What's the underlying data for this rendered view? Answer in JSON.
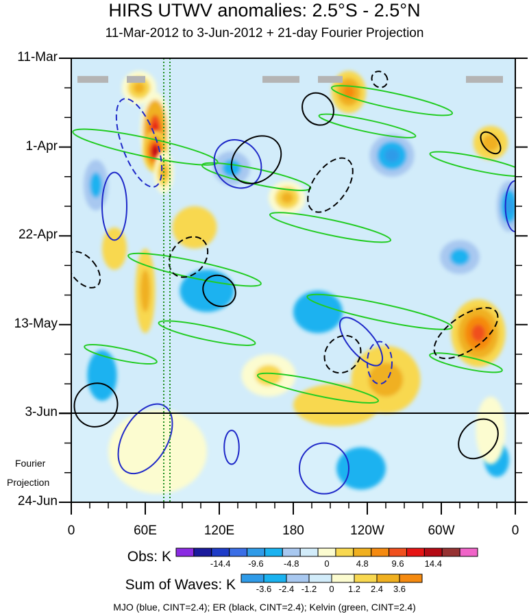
{
  "chart_data": {
    "type": "heatmap",
    "title": "HIRS UTWV anomalies: 2.5°S - 2.5°N",
    "subtitle": "11-Mar-2012 to 3-Jun-2012 + 21-day Fourier Projection",
    "x_ticks": [
      "0",
      "60E",
      "120E",
      "180",
      "120W",
      "60W",
      "0"
    ],
    "x_values": [
      0,
      60,
      120,
      180,
      240,
      300,
      360
    ],
    "xlim": [
      0,
      360
    ],
    "y_ticks": [
      "11-Mar",
      "1-Apr",
      "22-Apr",
      "13-May",
      "3-Jun",
      "24-Jun"
    ],
    "y_values": [
      0,
      21,
      42,
      63,
      84,
      105
    ],
    "ylim": [
      0,
      105
    ],
    "observed_end_tick": "3-Jun",
    "projection_label": [
      "Fourier",
      "Projection"
    ],
    "obs_colorbar": {
      "name": "Obs: K",
      "tick_labels": [
        "-14.4",
        "-9.6",
        "-4.8",
        "0",
        "4.8",
        "9.6",
        "14.4"
      ],
      "colors": [
        "#8a2be2",
        "#1a1a9c",
        "#1e3cc8",
        "#3a6ee6",
        "#2f9be8",
        "#1ab2f0",
        "#a8c8f0",
        "#d2ecfa",
        "#fcfcd0",
        "#f8d850",
        "#f0b020",
        "#f58a10",
        "#f0501e",
        "#e61414",
        "#b40a14",
        "#963232",
        "#f064c8"
      ]
    },
    "waves_colorbar": {
      "name": "Sum of Waves: K",
      "tick_labels": [
        "-3.6",
        "-2.4",
        "-1.2",
        "0",
        "1.2",
        "2.4",
        "3.6"
      ],
      "colors": [
        "#2f9be8",
        "#1ab2f0",
        "#a8c8f0",
        "#d2ecfa",
        "#fcfcd0",
        "#f8d850",
        "#f0b020",
        "#f58a10"
      ]
    },
    "contour_legend": "MJO (blue, CINT=2.4); ER (black, CINT=2.4); Kelvin (green, CINT=2.4)",
    "contour_colors": {
      "mjo": "#1e28c8",
      "er": "#000000",
      "kelvin": "#22cc22"
    },
    "missing_data_bars": [
      {
        "x0": 5,
        "x1": 30,
        "day": 5
      },
      {
        "x0": 45,
        "x1": 60,
        "day": 5
      },
      {
        "x0": 155,
        "x1": 185,
        "day": 5
      },
      {
        "x0": 200,
        "x1": 220,
        "day": 5
      },
      {
        "x0": 320,
        "x1": 350,
        "day": 5
      }
    ],
    "reference_longitudes": [
      75,
      80
    ],
    "features": {
      "warm": [
        {
          "x": 55,
          "day": 7,
          "rx": 14,
          "ry": 4,
          "v": 6
        },
        {
          "x": 68,
          "day": 17,
          "rx": 12,
          "ry": 9,
          "v": 12
        },
        {
          "x": 68,
          "day": 22,
          "rx": 10,
          "ry": 5,
          "v": 15
        },
        {
          "x": 75,
          "day": 27,
          "rx": 8,
          "ry": 5,
          "v": 6
        },
        {
          "x": 60,
          "day": 55,
          "rx": 8,
          "ry": 10,
          "v": 5
        },
        {
          "x": 35,
          "day": 45,
          "rx": 10,
          "ry": 5,
          "v": 3
        },
        {
          "x": 175,
          "day": 33,
          "rx": 15,
          "ry": 4,
          "v": 7
        },
        {
          "x": 225,
          "day": 8,
          "rx": 14,
          "ry": 5,
          "v": 8
        },
        {
          "x": 330,
          "day": 65,
          "rx": 22,
          "ry": 8,
          "v": 10
        },
        {
          "x": 340,
          "day": 20,
          "rx": 14,
          "ry": 4,
          "v": 5
        },
        {
          "x": 255,
          "day": 76,
          "rx": 28,
          "ry": 8,
          "v": 5
        },
        {
          "x": 160,
          "day": 75,
          "rx": 22,
          "ry": 5,
          "v": 4
        },
        {
          "x": 215,
          "day": 82,
          "rx": 35,
          "ry": 5,
          "v": 3
        },
        {
          "x": 70,
          "day": 93,
          "rx": 40,
          "ry": 10,
          "v": 1.2
        },
        {
          "x": 340,
          "day": 88,
          "rx": 12,
          "ry": 8,
          "v": 1.2
        },
        {
          "x": 100,
          "day": 40,
          "rx": 18,
          "ry": 5,
          "v": 3
        }
      ],
      "cold": [
        {
          "x": 20,
          "day": 30,
          "rx": 10,
          "ry": 6,
          "v": -4
        },
        {
          "x": 260,
          "day": 23,
          "rx": 18,
          "ry": 5,
          "v": -6
        },
        {
          "x": 315,
          "day": 47,
          "rx": 16,
          "ry": 4,
          "v": -4
        },
        {
          "x": 355,
          "day": 35,
          "rx": 10,
          "ry": 6,
          "v": -6
        },
        {
          "x": 130,
          "day": 26,
          "rx": 15,
          "ry": 4,
          "v": -4
        },
        {
          "x": 200,
          "day": 60,
          "rx": 20,
          "ry": 5,
          "v": -3
        },
        {
          "x": 25,
          "day": 75,
          "rx": 12,
          "ry": 6,
          "v": -3
        },
        {
          "x": 235,
          "day": 97,
          "rx": 20,
          "ry": 5,
          "v": -2.4
        },
        {
          "x": 345,
          "day": 95,
          "rx": 10,
          "ry": 4,
          "v": -2.4
        },
        {
          "x": 110,
          "day": 55,
          "rx": 22,
          "ry": 5,
          "v": -3
        }
      ]
    }
  }
}
